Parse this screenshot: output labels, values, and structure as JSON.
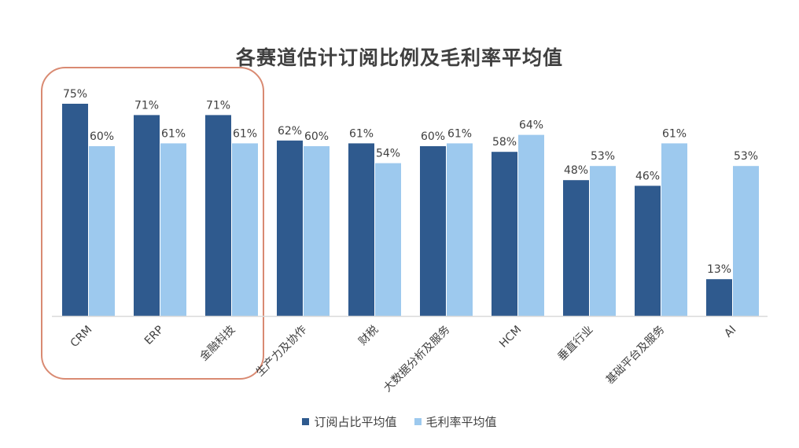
{
  "chart_data": {
    "type": "bar",
    "title": "各赛道估计订阅比例及毛利率平均值",
    "categories": [
      "CRM",
      "ERP",
      "金融科技",
      "生产力及协作",
      "财税",
      "大数据分析及服务",
      "HCM",
      "垂直行业",
      "基础平台及服务",
      "AI"
    ],
    "series": [
      {
        "name": "订阅占比平均值",
        "color": "#2f5a8e",
        "values": [
          75,
          71,
          71,
          62,
          61,
          60,
          58,
          48,
          46,
          13
        ]
      },
      {
        "name": "毛利率平均值",
        "color": "#9dc9ee",
        "values": [
          60,
          61,
          61,
          60,
          54,
          61,
          64,
          53,
          61,
          53
        ]
      }
    ],
    "value_suffix": "%",
    "ylim": [
      0,
      80
    ],
    "grid": false,
    "legend_position": "bottom",
    "highlight": {
      "categories": [
        "CRM",
        "ERP",
        "金融科技"
      ],
      "color": "#d98a72"
    }
  }
}
